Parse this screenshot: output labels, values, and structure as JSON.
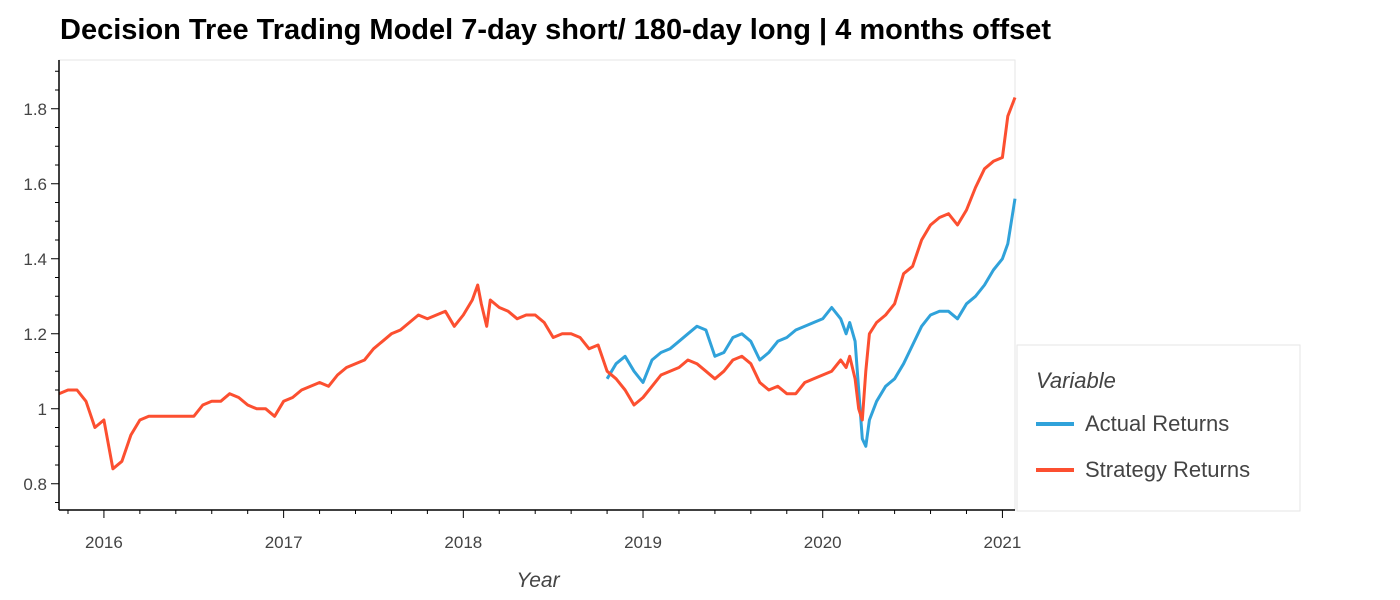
{
  "chart_data": {
    "type": "line",
    "title": "Decision Tree Trading Model 7-day short/ 180-day long | 4 months offset",
    "xlabel": "Year",
    "ylabel": "",
    "xlim": [
      2015.75,
      2021.07
    ],
    "ylim": [
      0.73,
      1.93
    ],
    "x_ticks": [
      2016,
      2017,
      2018,
      2019,
      2020,
      2021
    ],
    "x_tick_labels": [
      "2016",
      "2017",
      "2018",
      "2019",
      "2020",
      "2021"
    ],
    "y_ticks": [
      0.8,
      1,
      1.2,
      1.4,
      1.6,
      1.8
    ],
    "y_tick_labels": [
      "0.8",
      "1",
      "1.2",
      "1.4",
      "1.6",
      "1.8"
    ],
    "grid": false,
    "legend": {
      "title": "Variable",
      "position": "right"
    },
    "series": [
      {
        "name": "Actual Returns",
        "color": "#30a2da",
        "x": [
          2018.8,
          2018.85,
          2018.9,
          2018.95,
          2019.0,
          2019.05,
          2019.1,
          2019.15,
          2019.2,
          2019.25,
          2019.3,
          2019.35,
          2019.4,
          2019.45,
          2019.5,
          2019.55,
          2019.6,
          2019.65,
          2019.7,
          2019.75,
          2019.8,
          2019.85,
          2019.9,
          2019.95,
          2020.0,
          2020.05,
          2020.1,
          2020.13,
          2020.15,
          2020.18,
          2020.2,
          2020.22,
          2020.24,
          2020.26,
          2020.3,
          2020.35,
          2020.4,
          2020.45,
          2020.5,
          2020.55,
          2020.6,
          2020.65,
          2020.7,
          2020.75,
          2020.8,
          2020.85,
          2020.9,
          2020.95,
          2021.0,
          2021.03,
          2021.07
        ],
        "y": [
          1.08,
          1.12,
          1.14,
          1.1,
          1.07,
          1.13,
          1.15,
          1.16,
          1.18,
          1.2,
          1.22,
          1.21,
          1.14,
          1.15,
          1.19,
          1.2,
          1.18,
          1.13,
          1.15,
          1.18,
          1.19,
          1.21,
          1.22,
          1.23,
          1.24,
          1.27,
          1.24,
          1.2,
          1.23,
          1.18,
          1.05,
          0.92,
          0.9,
          0.97,
          1.02,
          1.06,
          1.08,
          1.12,
          1.17,
          1.22,
          1.25,
          1.26,
          1.26,
          1.24,
          1.28,
          1.3,
          1.33,
          1.37,
          1.4,
          1.44,
          1.56
        ]
      },
      {
        "name": "Strategy Returns",
        "color": "#fc4f30",
        "x": [
          2015.75,
          2015.8,
          2015.85,
          2015.9,
          2015.95,
          2016.0,
          2016.05,
          2016.1,
          2016.15,
          2016.2,
          2016.25,
          2016.3,
          2016.4,
          2016.5,
          2016.55,
          2016.6,
          2016.65,
          2016.7,
          2016.75,
          2016.8,
          2016.85,
          2016.9,
          2016.95,
          2017.0,
          2017.05,
          2017.1,
          2017.15,
          2017.2,
          2017.25,
          2017.3,
          2017.35,
          2017.4,
          2017.45,
          2017.5,
          2017.55,
          2017.6,
          2017.65,
          2017.7,
          2017.75,
          2017.8,
          2017.85,
          2017.9,
          2017.95,
          2018.0,
          2018.05,
          2018.08,
          2018.1,
          2018.13,
          2018.15,
          2018.2,
          2018.25,
          2018.3,
          2018.35,
          2018.4,
          2018.45,
          2018.5,
          2018.55,
          2018.6,
          2018.65,
          2018.7,
          2018.75,
          2018.8,
          2018.85,
          2018.9,
          2018.95,
          2019.0,
          2019.05,
          2019.1,
          2019.15,
          2019.2,
          2019.25,
          2019.3,
          2019.35,
          2019.4,
          2019.45,
          2019.5,
          2019.55,
          2019.6,
          2019.65,
          2019.7,
          2019.75,
          2019.8,
          2019.85,
          2019.9,
          2019.95,
          2020.0,
          2020.05,
          2020.1,
          2020.13,
          2020.15,
          2020.18,
          2020.2,
          2020.22,
          2020.24,
          2020.26,
          2020.3,
          2020.35,
          2020.4,
          2020.45,
          2020.5,
          2020.55,
          2020.6,
          2020.65,
          2020.7,
          2020.75,
          2020.8,
          2020.85,
          2020.9,
          2020.95,
          2021.0,
          2021.03,
          2021.07
        ],
        "y": [
          1.04,
          1.05,
          1.05,
          1.02,
          0.95,
          0.97,
          0.84,
          0.86,
          0.93,
          0.97,
          0.98,
          0.98,
          0.98,
          0.98,
          1.01,
          1.02,
          1.02,
          1.04,
          1.03,
          1.01,
          1.0,
          1.0,
          0.98,
          1.02,
          1.03,
          1.05,
          1.06,
          1.07,
          1.06,
          1.09,
          1.11,
          1.12,
          1.13,
          1.16,
          1.18,
          1.2,
          1.21,
          1.23,
          1.25,
          1.24,
          1.25,
          1.26,
          1.22,
          1.25,
          1.29,
          1.33,
          1.28,
          1.22,
          1.29,
          1.27,
          1.26,
          1.24,
          1.25,
          1.25,
          1.23,
          1.19,
          1.2,
          1.2,
          1.19,
          1.16,
          1.17,
          1.1,
          1.08,
          1.05,
          1.01,
          1.03,
          1.06,
          1.09,
          1.1,
          1.11,
          1.13,
          1.12,
          1.1,
          1.08,
          1.1,
          1.13,
          1.14,
          1.12,
          1.07,
          1.05,
          1.06,
          1.04,
          1.04,
          1.07,
          1.08,
          1.09,
          1.1,
          1.13,
          1.11,
          1.14,
          1.08,
          1.0,
          0.97,
          1.1,
          1.2,
          1.23,
          1.25,
          1.28,
          1.36,
          1.38,
          1.45,
          1.49,
          1.51,
          1.52,
          1.49,
          1.53,
          1.59,
          1.64,
          1.66,
          1.67,
          1.78,
          1.83
        ]
      }
    ]
  }
}
